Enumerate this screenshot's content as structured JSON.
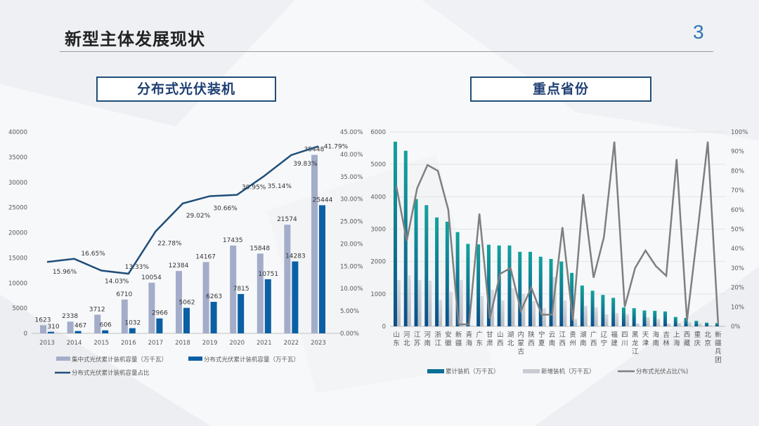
{
  "slide": {
    "title": "新型主体发展现状",
    "page_number": "3"
  },
  "panels": {
    "left_title": "分布式光伏装机",
    "right_title": "重点省份"
  },
  "colors": {
    "accent": "#1f4e79",
    "centralized": "#a3adc9",
    "distributed": "#0b5fa5",
    "ratio_line": "#1f4e79",
    "cumulative_top": "#10a0a0",
    "cumulative_bottom": "#0a4f8a",
    "new": "#c8ccd2",
    "share_line": "#7f7f7f"
  },
  "chart_data": [
    {
      "type": "bar",
      "title": "分布式光伏装机",
      "categories": [
        "2013",
        "2014",
        "2015",
        "2016",
        "2017",
        "2018",
        "2019",
        "2020",
        "2021",
        "2022",
        "2023"
      ],
      "series": [
        {
          "name": "集中式光伏累计装机容量（万千瓦）",
          "kind": "bar",
          "axis": "left",
          "values": [
            1623,
            2338,
            3712,
            6710,
            10054,
            12384,
            14167,
            17435,
            15848,
            21574,
            35448
          ]
        },
        {
          "name": "分布式光伏累计装机容量（万千瓦）",
          "kind": "bar",
          "axis": "left",
          "values": [
            310,
            467,
            606,
            1032,
            2966,
            5062,
            6263,
            7815,
            10751,
            14283,
            25444
          ]
        },
        {
          "name": "分布式光伏累计装机容量占比",
          "kind": "line",
          "axis": "right",
          "values": [
            15.96,
            16.65,
            14.03,
            13.33,
            22.78,
            29.02,
            30.66,
            30.95,
            35.14,
            39.83,
            41.79
          ]
        }
      ],
      "ylim": [
        0,
        40000
      ],
      "y_ticks": [
        "0",
        "5000",
        "10000",
        "15000",
        "20000",
        "25000",
        "30000",
        "35000",
        "40000"
      ],
      "y2lim": [
        0,
        45
      ],
      "y2_ticks": [
        "0.00%",
        "5.00%",
        "10.00%",
        "15.00%",
        "20.00%",
        "25.00%",
        "30.00%",
        "35.00%",
        "40.00%",
        "45.00%"
      ],
      "ratio_labels": [
        "15.96%",
        "16.65%",
        "14.03%",
        "13.33%",
        "22.78%",
        "29.02%",
        "30.66%",
        "30.95%",
        "35.14%",
        "39.83%",
        "41.79%"
      ],
      "legend": "bottom"
    },
    {
      "type": "bar",
      "title": "重点省份",
      "categories": [
        "山东",
        "河北",
        "江苏",
        "河南",
        "浙江",
        "安徽",
        "新疆",
        "青海",
        "广东",
        "甘肃",
        "山西",
        "湖北",
        "内蒙古",
        "陕西",
        "宁夏",
        "云南",
        "江西",
        "贵州",
        "湖南",
        "广西",
        "辽宁",
        "福建",
        "四川",
        "黑龙江",
        "天津",
        "海南",
        "吉林",
        "上海",
        "西藏",
        "重庆",
        "北京",
        "新疆兵团"
      ],
      "series": [
        {
          "name": "累计装机（万千瓦）",
          "kind": "bar",
          "axis": "left",
          "values": [
            5700,
            5420,
            3930,
            3740,
            3360,
            3230,
            2910,
            2545,
            2530,
            2520,
            2495,
            2495,
            2300,
            2300,
            2150,
            2080,
            2000,
            1650,
            1260,
            1100,
            970,
            880,
            580,
            560,
            490,
            480,
            460,
            290,
            260,
            170,
            115,
            100
          ]
        },
        {
          "name": "新增装机（万千瓦）",
          "kind": "bar",
          "axis": "left",
          "values": [
            1430,
            1570,
            1430,
            1410,
            820,
            1070,
            1430,
            30,
            940,
            1130,
            800,
            1170,
            1000,
            780,
            560,
            1520,
            800,
            230,
            630,
            580,
            370,
            410,
            375,
            95,
            280,
            230,
            85,
            110,
            130,
            95,
            35,
            20
          ]
        },
        {
          "name": "分布式光伏占比(%)",
          "kind": "line",
          "axis": "right",
          "values": [
            72,
            44,
            71,
            83,
            80,
            60,
            1,
            1,
            58,
            4,
            27,
            30,
            8,
            20,
            6,
            6,
            51,
            3,
            68,
            25,
            46,
            95,
            10,
            30,
            39,
            31,
            26,
            86,
            3,
            48,
            95,
            1
          ]
        }
      ],
      "ylim": [
        0,
        6000
      ],
      "y_ticks": [
        "0",
        "1000",
        "2000",
        "3000",
        "4000",
        "5000",
        "6000"
      ],
      "y2lim": [
        0,
        100
      ],
      "y2_ticks": [
        "0%",
        "10%",
        "20%",
        "30%",
        "40%",
        "50%",
        "60%",
        "70%",
        "80%",
        "90%",
        "100%"
      ],
      "legend": "bottom"
    }
  ]
}
